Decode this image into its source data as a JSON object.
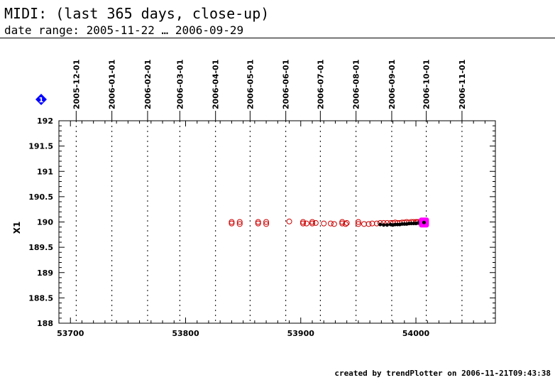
{
  "title": "MIDI: (last 365 days, close-up)",
  "subtitle": "date range: 2005-11-22 … 2006-09-29",
  "footer": "created by trendPlotter on 2006-11-21T09:43:38",
  "marker_icon": "blue-diamond-icon",
  "marker_label": "1",
  "colors": {
    "series_red": "#cc0000",
    "series_black": "#000000",
    "latest": "#ff00ff",
    "marker": "#0000ff"
  },
  "chart_data": {
    "type": "scatter",
    "title": "MIDI: (last 365 days, close-up)",
    "subtitle": "date range: 2005-11-22 … 2006-09-29",
    "xlabel": "",
    "ylabel": "X1",
    "xlim": [
      53690,
      54069
    ],
    "ylim": [
      188,
      192
    ],
    "grid": false,
    "x_ticks": [
      53700,
      53800,
      53900,
      54000
    ],
    "y_ticks": [
      188,
      188.5,
      189,
      189.5,
      190,
      190.5,
      191,
      191.5,
      192
    ],
    "y_tick_labels": [
      "188",
      "188.5",
      "189",
      "189.5",
      "190",
      "190.5",
      "191",
      "191.5",
      "192"
    ],
    "date_markers": [
      {
        "label": "2005-12-01",
        "x": 53705
      },
      {
        "label": "2006-01-01",
        "x": 53736
      },
      {
        "label": "2006-02-01",
        "x": 53767
      },
      {
        "label": "2006-03-01",
        "x": 53795
      },
      {
        "label": "2006-04-01",
        "x": 53826
      },
      {
        "label": "2006-05-01",
        "x": 53856
      },
      {
        "label": "2006-06-01",
        "x": 53887
      },
      {
        "label": "2006-07-01",
        "x": 53917
      },
      {
        "label": "2006-08-01",
        "x": 53948
      },
      {
        "label": "2006-09-01",
        "x": 53979
      },
      {
        "label": "2006-10-01",
        "x": 54009
      },
      {
        "label": "2006-11-01",
        "x": 54040
      }
    ],
    "series": [
      {
        "marker": "open-circle",
        "points": [
          [
            53840,
            189.97
          ],
          [
            53840,
            190.0
          ],
          [
            53847,
            189.96
          ],
          [
            53847,
            190.0
          ],
          [
            53863,
            189.97
          ],
          [
            53863,
            190.0
          ],
          [
            53870,
            189.96
          ],
          [
            53870,
            190.0
          ],
          [
            53890,
            190.01
          ],
          [
            53902,
            189.97
          ],
          [
            53902,
            190.0
          ],
          [
            53905,
            189.97
          ],
          [
            53910,
            189.97
          ],
          [
            53910,
            190.0
          ],
          [
            53913,
            189.98
          ],
          [
            53920,
            189.97
          ],
          [
            53926,
            189.97
          ],
          [
            53929,
            189.96
          ],
          [
            53936,
            189.97
          ],
          [
            53936,
            190.0
          ],
          [
            53939,
            189.96
          ],
          [
            53940,
            189.98
          ],
          [
            53950,
            189.96
          ],
          [
            53950,
            190.0
          ],
          [
            53955,
            189.96
          ],
          [
            53959,
            189.96
          ],
          [
            53962,
            189.97
          ],
          [
            53966,
            189.97
          ],
          [
            53969,
            189.98
          ],
          [
            53972,
            189.98
          ],
          [
            53975,
            189.98
          ],
          [
            53978,
            189.98
          ],
          [
            53980,
            189.98
          ],
          [
            53982,
            189.99
          ],
          [
            53984,
            189.98
          ],
          [
            53986,
            189.98
          ],
          [
            53988,
            189.99
          ],
          [
            53990,
            189.99
          ],
          [
            53992,
            190.0
          ],
          [
            53994,
            189.99
          ],
          [
            53996,
            190.0
          ],
          [
            53998,
            190.0
          ],
          [
            54000,
            190.0
          ],
          [
            54001,
            190.0
          ],
          [
            54002,
            190.0
          ],
          [
            54004,
            190.0
          ],
          [
            54005,
            190.01
          ],
          [
            54006,
            190.01
          ]
        ]
      },
      {
        "marker": "filled-dot",
        "points": [
          [
            53969,
            189.95
          ],
          [
            53972,
            189.94
          ],
          [
            53975,
            189.94
          ],
          [
            53978,
            189.95
          ],
          [
            53980,
            189.94
          ],
          [
            53982,
            189.95
          ],
          [
            53984,
            189.95
          ],
          [
            53986,
            189.95
          ],
          [
            53988,
            189.96
          ],
          [
            53990,
            189.96
          ],
          [
            53992,
            189.96
          ],
          [
            53994,
            189.97
          ],
          [
            53996,
            189.97
          ],
          [
            53998,
            189.97
          ],
          [
            54000,
            189.97
          ],
          [
            54002,
            189.98
          ]
        ]
      },
      {
        "marker": "highlight",
        "points": [
          [
            54007,
            189.99
          ]
        ]
      }
    ]
  }
}
